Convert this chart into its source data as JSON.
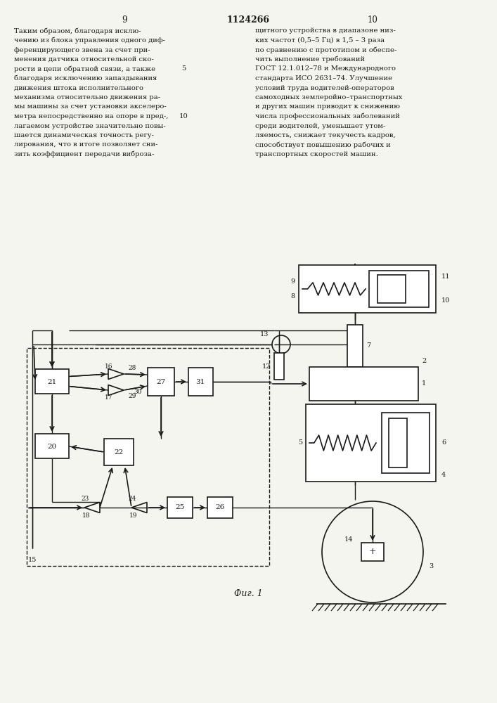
{
  "page_title": "1124266",
  "page_left": "9",
  "page_right": "10",
  "fig_caption": "Фиг. 1",
  "bg_color": "#f5f5f0",
  "line_color": "#1a1a1a",
  "left_text": [
    "Таким образом, благодаря исклю-",
    "чению из блока управления одного диф-",
    "ференцирующего звена за счет при-",
    "менения датчика относительной ско-",
    "рости в цепи обратной связи, а также",
    "благодаря исключению запаздывания",
    "движения штока исполнительного",
    "механизма относительно движения ра-",
    "мы машины за счет установки акселеро-",
    "метра непосредственно на опоре в пред-,",
    "лагаемом устройстве значительно повы-",
    "шается динамическая точность регу-",
    "лирования, что в итоге позволяет сни-",
    "зить коэффициент передачи виброза-"
  ],
  "right_text": [
    "щитного устройства в диапазоне низ-",
    "ких частот (0,5–5 Гц) в 1,5 – 3 раза",
    "по сравнению с прототипом и обеспе-",
    "чить выполнение требований",
    "ГОСТ 12.1.012–78 и Международного",
    "стандарта ИСО 2631–74. Улучшение",
    "условий труда водителей-операторов",
    "самоходных землеройно–транспортных",
    "и других машин приводит к снижению",
    "числа профессиональных заболеваний",
    "среди водителей, уменьшает утом-",
    "ляемость, снижает текучесть кадров,",
    "способствует повышению рабочих и",
    "транспортных скоростей машин."
  ]
}
